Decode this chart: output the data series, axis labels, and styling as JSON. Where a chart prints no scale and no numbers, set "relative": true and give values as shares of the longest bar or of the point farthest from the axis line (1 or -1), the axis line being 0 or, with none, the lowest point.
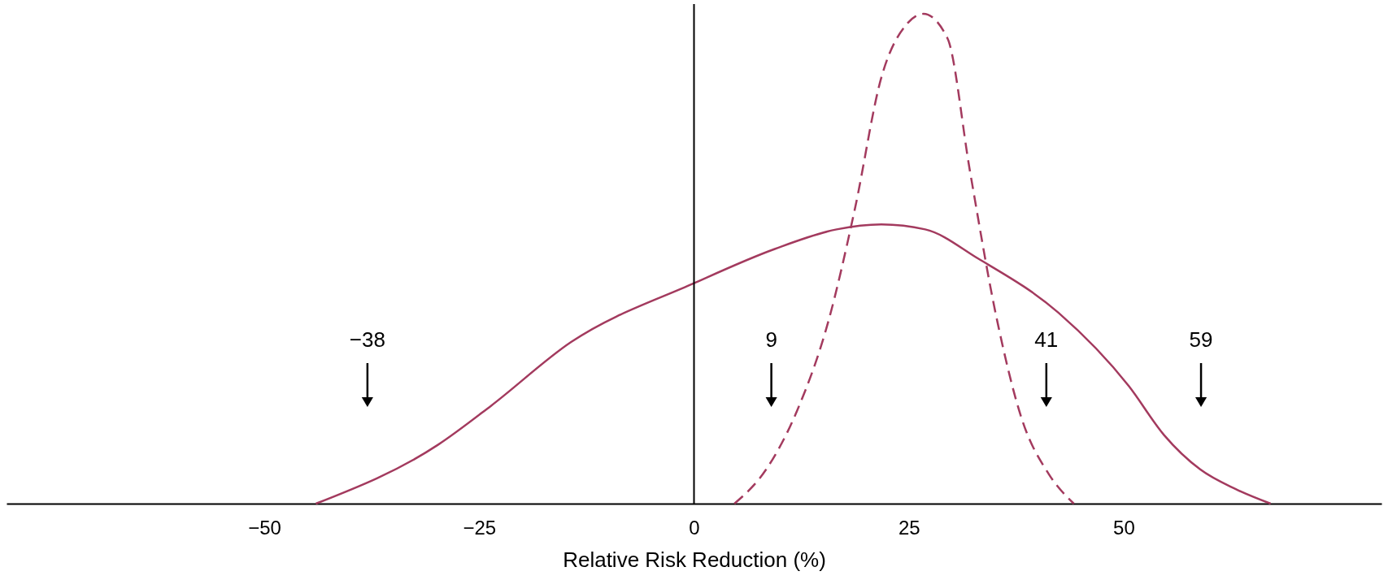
{
  "chart_data": {
    "type": "line",
    "relative": true,
    "xlabel": "Relative Risk Reduction (%)",
    "xlim": [
      -80,
      80
    ],
    "xticks": [
      {
        "value": -50,
        "label": "−50"
      },
      {
        "value": -25,
        "label": "−25"
      },
      0,
      25,
      50
    ],
    "grid": false,
    "series": [
      {
        "color": "#a33a5e",
        "line_style": "solid",
        "x": [
          -44,
          -29.8,
          -23.6,
          -14.3,
          0,
          9.4,
          16.6,
          21.8,
          26.9,
          33.1,
          42.4,
          50.6,
          54.7,
          58.9,
          63,
          67.1
        ],
        "values": [
          0,
          0.12,
          0.2,
          0.33,
          0.45,
          0.52,
          0.56,
          0.57,
          0.56,
          0.5,
          0.39,
          0.24,
          0.14,
          0.07,
          0.03,
          0
        ]
      },
      {
        "color": "#a33a5e",
        "line_style": "dashed",
        "x": [
          4.7,
          8.4,
          12,
          15.6,
          18.7,
          21.8,
          24.8,
          26.7,
          29.5,
          32.1,
          35.2,
          38.2,
          41.3,
          44.2
        ],
        "values": [
          0,
          0.07,
          0.19,
          0.37,
          0.6,
          0.87,
          0.98,
          1,
          0.95,
          0.68,
          0.38,
          0.17,
          0.06,
          0
        ]
      }
    ],
    "ref_lines": [
      {
        "axis": "x",
        "value": 0,
        "color": "#000000"
      },
      {
        "axis": "x",
        "value": -38,
        "label": "−38",
        "color": "#000000"
      },
      {
        "axis": "x",
        "value": 9,
        "label": "9",
        "color": "#000000"
      },
      {
        "axis": "x",
        "value": 41,
        "label": "41",
        "color": "#000000"
      },
      {
        "axis": "x",
        "value": 59,
        "label": "59",
        "color": "#000000"
      }
    ]
  }
}
